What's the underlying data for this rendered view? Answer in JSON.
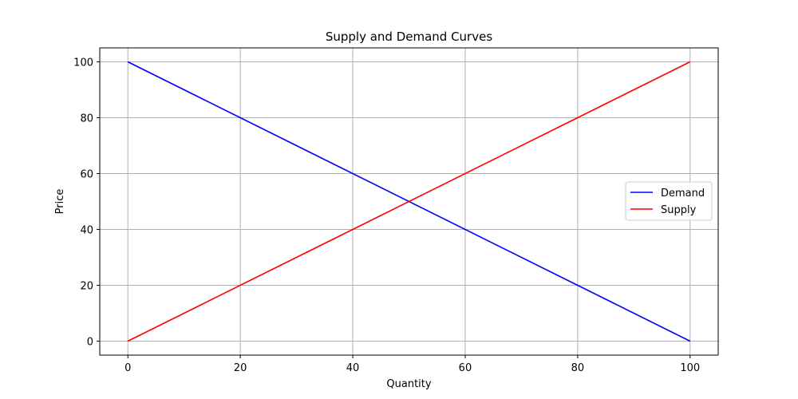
{
  "chart_data": {
    "type": "line",
    "title": "Supply and Demand Curves",
    "xlabel": "Quantity",
    "ylabel": "Price",
    "xlim": [
      -5,
      105
    ],
    "ylim": [
      -5,
      105
    ],
    "xticks": [
      0,
      20,
      40,
      60,
      80,
      100
    ],
    "yticks": [
      0,
      20,
      40,
      60,
      80,
      100
    ],
    "grid": true,
    "legend_position": "center-right",
    "series": [
      {
        "name": "Demand",
        "color": "#0000ff",
        "x": [
          0,
          100
        ],
        "y": [
          100,
          0
        ]
      },
      {
        "name": "Supply",
        "color": "#ff0000",
        "x": [
          0,
          100
        ],
        "y": [
          0,
          100
        ]
      }
    ]
  }
}
